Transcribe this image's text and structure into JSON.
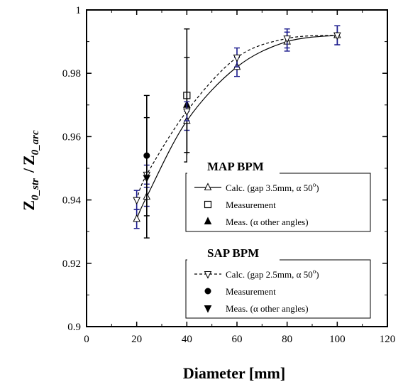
{
  "chart_data": {
    "type": "scatter",
    "xlabel": "Diameter [mm]",
    "ylabel": {
      "main_1": "Z",
      "sub_1": "0_str",
      "sep": "/",
      "main_2": "Z",
      "sub_2": "0_arc"
    },
    "xlim": [
      0,
      120
    ],
    "ylim": [
      0.9,
      1.0
    ],
    "x_ticks": [
      "0",
      "20",
      "40",
      "60",
      "80",
      "100",
      "120"
    ],
    "y_ticks": [
      "0.9",
      "0.92",
      "0.94",
      "0.96",
      "0.98",
      "1"
    ],
    "grid": false,
    "legends": [
      {
        "title": "MAP BPM",
        "entries": [
          {
            "label": "Calc. (gap 3.5mm, α 50",
            "sup": "o",
            "suffix": ")"
          },
          {
            "label": "Measurement"
          },
          {
            "label": "Meas. (α other angles)"
          }
        ]
      },
      {
        "title": "SAP BPM",
        "entries": [
          {
            "label": "Calc. (gap 2.5mm, α 50",
            "sup": "o",
            "suffix": ")"
          },
          {
            "label": "Measurement"
          },
          {
            "label": "Meas. (α other angles)"
          }
        ]
      }
    ],
    "series": [
      {
        "marker": "triangle-up-open",
        "line": "solid",
        "color": "#000000",
        "err_color": "#1a1a8c",
        "x": [
          20,
          24,
          40,
          60,
          80,
          100
        ],
        "y": [
          0.934,
          0.941,
          0.965,
          0.982,
          0.99,
          0.992
        ],
        "err": [
          0.003,
          0.003,
          0.003,
          0.003,
          0.003,
          0.003
        ]
      },
      {
        "marker": "square-open",
        "line": "none",
        "color": "#000000",
        "err_color": "#000000",
        "x": [
          40
        ],
        "y": [
          0.973
        ],
        "err": [
          0.021
        ]
      },
      {
        "marker": "triangle-up-filled",
        "line": "none",
        "color": "#000000",
        "err_color": "#000000",
        "x": [
          40
        ],
        "y": [
          0.97
        ],
        "err": [
          0.015
        ]
      },
      {
        "marker": "triangle-down-open",
        "line": "dashed",
        "color": "#000000",
        "err_color": "#1a1a8c",
        "x": [
          20,
          24,
          40,
          60,
          80,
          100
        ],
        "y": [
          0.94,
          0.948,
          0.968,
          0.985,
          0.991,
          0.992
        ],
        "err": [
          0.003,
          0.003,
          0.003,
          0.003,
          0.003,
          0.003
        ]
      },
      {
        "marker": "circle-filled",
        "line": "none",
        "color": "#000000",
        "err_color": "#000000",
        "x": [
          24
        ],
        "y": [
          0.954
        ],
        "err": [
          0.019
        ]
      },
      {
        "marker": "triangle-down-filled",
        "line": "none",
        "color": "#000000",
        "err_color": "#000000",
        "x": [
          24
        ],
        "y": [
          0.947
        ],
        "err": [
          0.019
        ]
      }
    ]
  }
}
